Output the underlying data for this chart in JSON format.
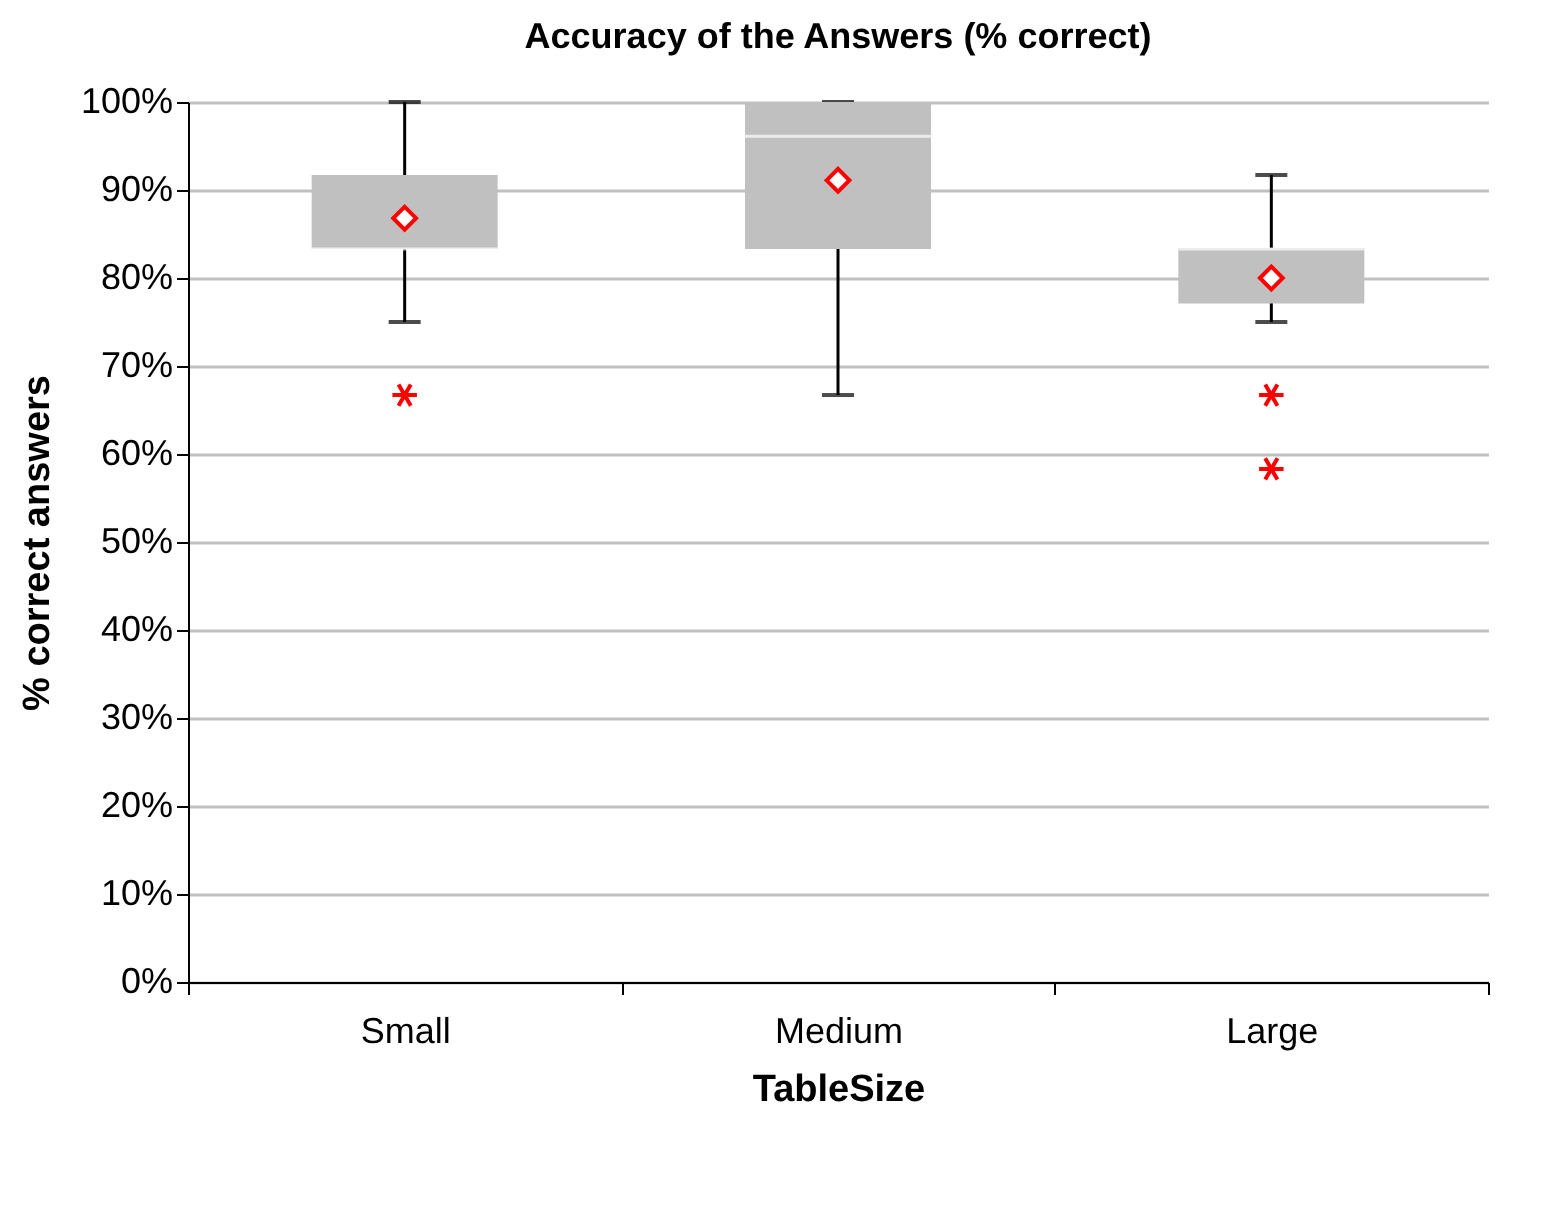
{
  "chart_data": {
    "type": "box",
    "title": "Accuracy of the Answers (% correct)",
    "xlabel": "TableSize",
    "ylabel": "% correct answers",
    "categories": [
      "Small",
      "Medium",
      "Large"
    ],
    "color": "#c0c0c0",
    "boxes": [
      {
        "low": 75,
        "q1": 83.3,
        "median": 83.3,
        "q3": 91.7,
        "high": 100,
        "mean": 86.8,
        "outliers": [
          66.7
        ]
      },
      {
        "low": 66.7,
        "q1": 83.3,
        "median": 96.1,
        "q3": 100,
        "high": 100,
        "mean": 91.1
      },
      {
        "low": 75,
        "q1": 77.1,
        "median": 83.3,
        "q3": 83.4,
        "high": 91.7,
        "mean": 80,
        "outliers": [
          66.7,
          58.3
        ]
      }
    ],
    "ylim": [
      0,
      100
    ],
    "yticks": [
      {
        "value": 0,
        "label": "0%"
      },
      {
        "value": 10,
        "label": "10%"
      },
      {
        "value": 20,
        "label": "20%"
      },
      {
        "value": 30,
        "label": "30%"
      },
      {
        "value": 40,
        "label": "40%"
      },
      {
        "value": 50,
        "label": "50%"
      },
      {
        "value": 60,
        "label": "60%"
      },
      {
        "value": 70,
        "label": "70%"
      },
      {
        "value": 80,
        "label": "80%"
      },
      {
        "value": 90,
        "label": "90%"
      },
      {
        "value": 100,
        "label": "100%"
      }
    ],
    "grid": "y"
  }
}
